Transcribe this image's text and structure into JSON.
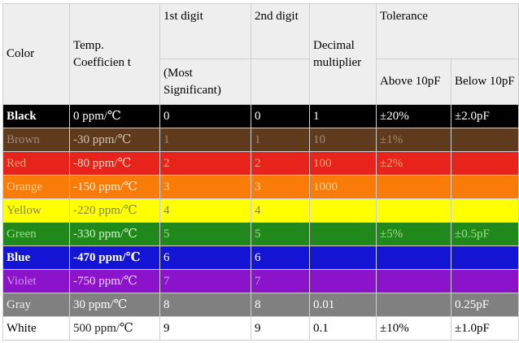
{
  "headers": {
    "color": "Color",
    "temp_coefficient": "Temp. Coefficien t",
    "first_digit_top": "1st digit",
    "first_digit_sub": "(Most Significant)",
    "second_digit": "2nd digit",
    "decimal_multiplier": "Decimal multiplier",
    "tolerance": "Tolerance",
    "tolerance_above": "Above 10pF",
    "tolerance_below": "Below 10pF"
  },
  "rows": [
    {
      "color": "Black",
      "coef": "0 ppm/℃",
      "d1": "0",
      "d2": "0",
      "mult": "1",
      "above": "±20%",
      "below": "±2.0pF"
    },
    {
      "color": "Brown",
      "coef": "-30 ppm/℃",
      "d1": "1",
      "d2": "1",
      "mult": "10",
      "above": "±1%",
      "below": ""
    },
    {
      "color": "Red",
      "coef": "-80 ppm/℃",
      "d1": "2",
      "d2": "2",
      "mult": "100",
      "above": "±2%",
      "below": ""
    },
    {
      "color": "Orange",
      "coef": "-150 ppm/℃",
      "d1": "3",
      "d2": "3",
      "mult": "1000",
      "above": "",
      "below": ""
    },
    {
      "color": "Yellow",
      "coef": "-220 ppm/℃",
      "d1": "4",
      "d2": "4",
      "mult": "",
      "above": "",
      "below": ""
    },
    {
      "color": "Green",
      "coef": "-330 ppm/℃",
      "d1": "5",
      "d2": "5",
      "mult": "",
      "above": "±5%",
      "below": "±0.5pF"
    },
    {
      "color": "Blue",
      "coef": "-470 ppm/℃",
      "d1": "6",
      "d2": "6",
      "mult": "",
      "above": "",
      "below": ""
    },
    {
      "color": "Violet",
      "coef": "-750 ppm/℃",
      "d1": "7",
      "d2": "7",
      "mult": "",
      "above": "",
      "below": ""
    },
    {
      "color": "Gray",
      "coef": "30 ppm/℃",
      "d1": "8",
      "d2": "8",
      "mult": "0.01",
      "above": "",
      "below": "0.25pF"
    },
    {
      "color": "White",
      "coef": "500 ppm/℃",
      "d1": "9",
      "d2": "9",
      "mult": "0.1",
      "above": "±10%",
      "below": "±1.0pF"
    }
  ],
  "row_colors": {
    "black": "#000000",
    "brown": "#5f3a1c",
    "red": "#e7231c",
    "orange": "#fb7b08",
    "yellow": "#ffff00",
    "green": "#21891c",
    "blue": "#1414d4",
    "violet": "#8b13c9",
    "gray": "#808080",
    "white": "#ffffff"
  }
}
